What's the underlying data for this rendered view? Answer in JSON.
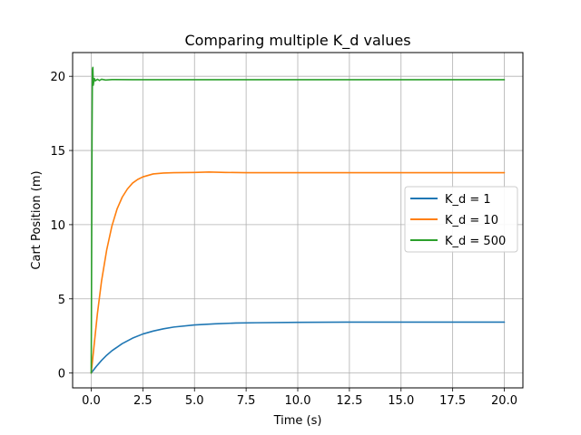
{
  "chart_data": {
    "type": "line",
    "title": "Comparing multiple K_d values",
    "xlabel": "Time (s)",
    "ylabel": "Cart Position (m)",
    "xlim": [
      -0.9,
      20.9
    ],
    "ylim": [
      -1.0,
      21.6
    ],
    "xticks": [
      0.0,
      2.5,
      5.0,
      7.5,
      10.0,
      12.5,
      15.0,
      17.5,
      20.0
    ],
    "xtick_labels": [
      "0.0",
      "2.5",
      "5.0",
      "7.5",
      "10.0",
      "12.5",
      "15.0",
      "17.5",
      "20.0"
    ],
    "yticks": [
      0,
      5,
      10,
      15,
      20
    ],
    "ytick_labels": [
      "0",
      "5",
      "10",
      "15",
      "20"
    ],
    "grid": true,
    "legend_position": "center-right",
    "series": [
      {
        "name": "K_d = 1",
        "color": "#1f77b4",
        "x": [
          0,
          0.25,
          0.5,
          0.75,
          1.0,
          1.5,
          2.0,
          2.5,
          3.0,
          3.5,
          4.0,
          5.0,
          6.0,
          7.0,
          8.0,
          10.0,
          12.5,
          15.0,
          17.5,
          20.0
        ],
        "y": [
          0,
          0.45,
          0.85,
          1.2,
          1.5,
          1.98,
          2.35,
          2.63,
          2.83,
          2.98,
          3.1,
          3.24,
          3.32,
          3.37,
          3.39,
          3.42,
          3.43,
          3.43,
          3.43,
          3.43
        ]
      },
      {
        "name": "K_d = 10",
        "color": "#ff7f0e",
        "x": [
          0,
          0.15,
          0.3,
          0.5,
          0.75,
          1.0,
          1.25,
          1.5,
          1.75,
          2.0,
          2.25,
          2.5,
          3.0,
          3.5,
          4.0,
          5.0,
          5.7,
          6.5,
          7.5,
          10.0,
          12.5,
          15.0,
          17.5,
          20.0
        ],
        "y": [
          0,
          2.0,
          4.0,
          6.2,
          8.3,
          9.9,
          11.05,
          11.85,
          12.4,
          12.8,
          13.05,
          13.22,
          13.42,
          13.48,
          13.5,
          13.52,
          13.55,
          13.52,
          13.5,
          13.5,
          13.5,
          13.5,
          13.5,
          13.5
        ]
      },
      {
        "name": "K_d = 500",
        "color": "#2ca02c",
        "x": [
          0,
          0.02,
          0.04,
          0.06,
          0.08,
          0.1,
          0.12,
          0.15,
          0.2,
          0.3,
          0.4,
          0.5,
          0.7,
          1.0,
          2.0,
          5.0,
          10.0,
          15.0,
          20.0
        ],
        "y": [
          0,
          8.0,
          16.0,
          20.5,
          20.6,
          19.4,
          19.6,
          19.85,
          19.7,
          19.8,
          19.72,
          19.8,
          19.75,
          19.78,
          19.77,
          19.77,
          19.77,
          19.77,
          19.77
        ]
      }
    ]
  }
}
